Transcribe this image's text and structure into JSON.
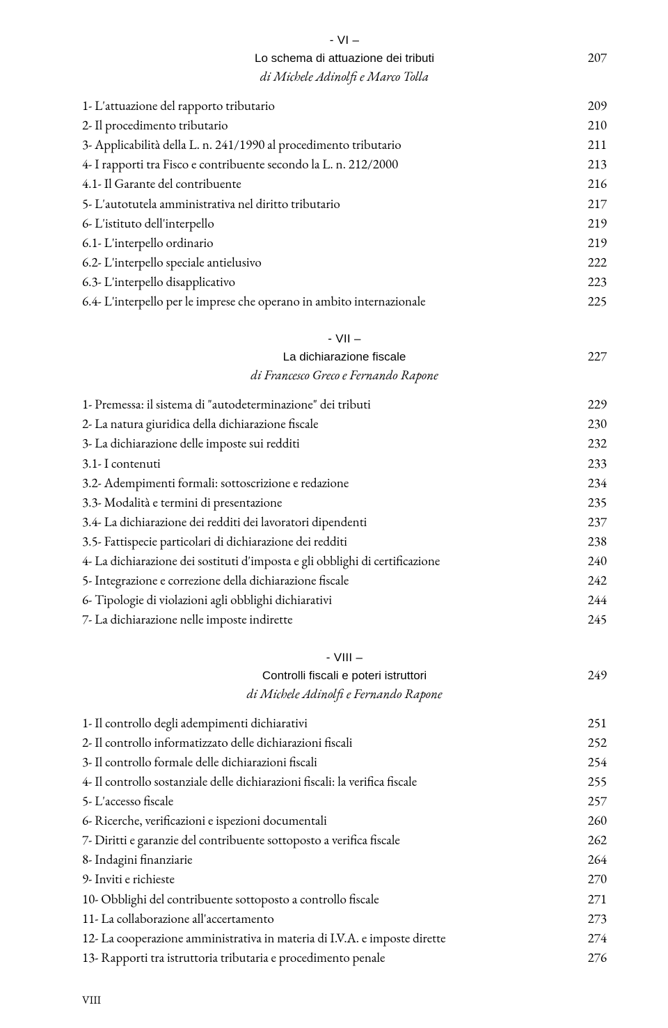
{
  "chapters": [
    {
      "num": "- VI –",
      "title": "Lo schema di attuazione dei tributi",
      "page": "207",
      "author": "di Michele Adinolfi e Marco Tolla",
      "entries": [
        {
          "label": "1- L'attuazione del rapporto tributario",
          "page": "209"
        },
        {
          "label": "2- Il procedimento tributario",
          "page": "210"
        },
        {
          "label": "3- Applicabilità della L. n. 241/1990 al procedimento tributario",
          "page": "211"
        },
        {
          "label": "4- I rapporti tra Fisco e contribuente secondo la L. n. 212/2000",
          "page": "213"
        },
        {
          "label": "4.1- Il Garante del contribuente",
          "page": "216"
        },
        {
          "label": "5- L'autotutela amministrativa nel diritto tributario",
          "page": "217"
        },
        {
          "label": "6- L'istituto dell'interpello",
          "page": "219"
        },
        {
          "label": "6.1- L'interpello ordinario",
          "page": "219"
        },
        {
          "label": "6.2- L'interpello speciale antielusivo",
          "page": "222"
        },
        {
          "label": "6.3- L'interpello disapplicativo",
          "page": "223"
        },
        {
          "label": "6.4- L'interpello per le imprese che operano in ambito internazionale",
          "page": "225"
        }
      ]
    },
    {
      "num": "- VII –",
      "title": "La dichiarazione fiscale",
      "page": "227",
      "author": "di Francesco Greco e Fernando Rapone",
      "entries": [
        {
          "label": "1- Premessa: il sistema di \"autodeterminazione\" dei tributi",
          "page": "229"
        },
        {
          "label": "2- La natura giuridica della dichiarazione fiscale",
          "page": "230"
        },
        {
          "label": "3- La dichiarazione delle imposte sui redditi",
          "page": "232"
        },
        {
          "label": "3.1- I contenuti",
          "page": "233"
        },
        {
          "label": "3.2- Adempimenti formali: sottoscrizione e redazione",
          "page": "234"
        },
        {
          "label": "3.3- Modalità e termini di presentazione",
          "page": "235"
        },
        {
          "label": "3.4- La dichiarazione dei redditi dei lavoratori dipendenti",
          "page": "237"
        },
        {
          "label": "3.5- Fattispecie particolari di dichiarazione dei redditi",
          "page": "238"
        },
        {
          "label": "4- La dichiarazione dei sostituti d'imposta e gli obblighi di certificazione",
          "page": "240"
        },
        {
          "label": "5- Integrazione e correzione della dichiarazione fiscale",
          "page": "242"
        },
        {
          "label": "6- Tipologie di violazioni agli obblighi dichiarativi",
          "page": "244"
        },
        {
          "label": "7- La dichiarazione nelle imposte indirette",
          "page": "245"
        }
      ]
    },
    {
      "num": "- VIII –",
      "title": "Controlli fiscali e poteri istruttori",
      "page": "249",
      "author": "di Michele Adinolfi e Fernando Rapone",
      "entries": [
        {
          "label": "1- Il controllo degli adempimenti dichiarativi",
          "page": "251"
        },
        {
          "label": "2- Il controllo informatizzato delle dichiarazioni fiscali",
          "page": "252"
        },
        {
          "label": "3- Il controllo formale delle dichiarazioni fiscali",
          "page": "254"
        },
        {
          "label": "4- Il controllo sostanziale delle dichiarazioni fiscali: la verifica fiscale",
          "page": "255"
        },
        {
          "label": "5- L'accesso fiscale",
          "page": "257"
        },
        {
          "label": "6- Ricerche, verificazioni e ispezioni documentali",
          "page": "260"
        },
        {
          "label": "7- Diritti e garanzie del contribuente sottoposto a verifica fiscale",
          "page": "262"
        },
        {
          "label": "8- Indagini finanziarie",
          "page": "264"
        },
        {
          "label": "9- Inviti e richieste",
          "page": "270"
        },
        {
          "label": "10- Obblighi del contribuente sottoposto a controllo fiscale",
          "page": "271"
        },
        {
          "label": "11- La collaborazione all'accertamento",
          "page": "273"
        },
        {
          "label": "12- La cooperazione amministrativa in materia di I.V.A. e imposte dirette",
          "page": "274"
        },
        {
          "label": "13- Rapporti tra istruttoria tributaria e procedimento penale",
          "page": "276"
        }
      ]
    }
  ],
  "footer": "VIII"
}
